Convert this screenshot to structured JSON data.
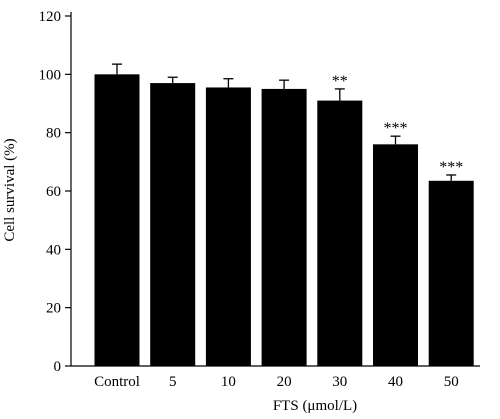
{
  "chart_data": {
    "type": "bar",
    "categories": [
      "Control",
      "5",
      "10",
      "20",
      "30",
      "40",
      "50"
    ],
    "values": [
      100,
      97,
      95.5,
      95,
      91,
      76,
      63.5
    ],
    "errors": [
      3.5,
      2,
      3,
      3,
      4,
      2.8,
      2
    ],
    "annotations": [
      "",
      "",
      "",
      "",
      "**",
      "***",
      "***"
    ],
    "xlabel": "FTS (μmol/L)",
    "ylabel": "Cell survival (%)",
    "ylim": [
      0,
      120
    ],
    "yticks": [
      0,
      20,
      40,
      60,
      80,
      100,
      120
    ],
    "grid": false,
    "bar_color": "#000000"
  }
}
